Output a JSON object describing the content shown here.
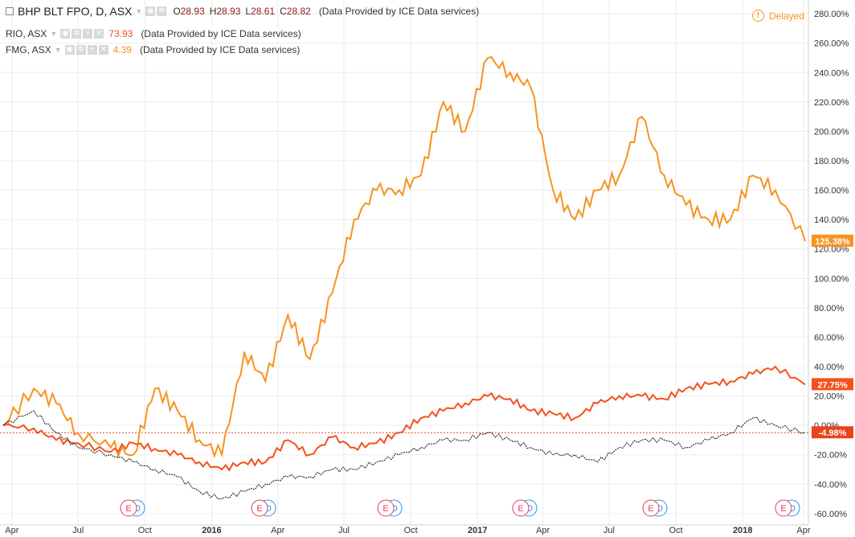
{
  "legend": {
    "main": {
      "symbol": "BHP BLT FPO, D, ASX",
      "open_label": "O",
      "open": "28.93",
      "high_label": "H",
      "high": "28.93",
      "low_label": "L",
      "low": "28.61",
      "close_label": "C",
      "close": "28.82",
      "provider": "(Data Provided by ICE Data services)"
    },
    "compare": [
      {
        "symbol": "RIO, ASX",
        "value": "73.93",
        "provider": "(Data Provided by ICE Data services)"
      },
      {
        "symbol": "FMG, ASX",
        "value": "4.39",
        "provider": "(Data Provided by ICE Data services)"
      }
    ]
  },
  "delayed_label": "Delayed",
  "colors": {
    "fmg": "#f7931e",
    "rio": "#f4511e",
    "bhp": "#111111",
    "baseline": "#e8431b"
  },
  "chart_data": {
    "type": "line",
    "x": [
      "2015-03-20",
      "2015-05-01",
      "2015-06-01",
      "2015-07-01",
      "2015-08-15",
      "2015-09-15",
      "2015-10-15",
      "2015-11-15",
      "2015-12-15",
      "2016-01-15",
      "2016-02-15",
      "2016-03-15",
      "2016-04-15",
      "2016-05-15",
      "2016-06-15",
      "2016-07-15",
      "2016-08-15",
      "2016-09-15",
      "2016-10-15",
      "2016-11-15",
      "2016-12-15",
      "2017-01-15",
      "2017-02-15",
      "2017-03-15",
      "2017-04-15",
      "2017-05-15",
      "2017-06-15",
      "2017-07-15",
      "2017-08-15",
      "2017-09-15",
      "2017-10-15",
      "2017-11-15",
      "2017-12-15",
      "2018-01-15",
      "2018-02-15",
      "2018-03-28"
    ],
    "series": [
      {
        "name": "FMG, ASX",
        "values": [
          0,
          25,
          15,
          -5,
          -15,
          -20,
          25,
          10,
          -10,
          -20,
          50,
          30,
          75,
          45,
          90,
          140,
          160,
          160,
          170,
          220,
          200,
          250,
          240,
          230,
          160,
          140,
          160,
          170,
          210,
          170,
          150,
          140,
          140,
          170,
          160,
          125.38
        ]
      },
      {
        "name": "RIO, ASX",
        "values": [
          0,
          -2,
          -10,
          -12,
          -18,
          -12,
          -16,
          -20,
          -25,
          -30,
          -25,
          -25,
          -10,
          -20,
          -8,
          -15,
          -12,
          -5,
          5,
          10,
          15,
          20,
          18,
          10,
          8,
          5,
          15,
          20,
          20,
          18,
          25,
          28,
          30,
          35,
          40,
          27.75
        ]
      },
      {
        "name": "BHP BLT FPO, D, ASX",
        "values": [
          0,
          10,
          -5,
          -15,
          -20,
          -25,
          -30,
          -35,
          -45,
          -50,
          -45,
          -40,
          -35,
          -35,
          -30,
          -30,
          -25,
          -20,
          -15,
          -10,
          -10,
          -5,
          -10,
          -15,
          -20,
          -20,
          -25,
          -15,
          -10,
          -10,
          -15,
          -10,
          -5,
          5,
          0,
          -4.98
        ]
      }
    ],
    "y_ticks": [
      "280.00%",
      "260.00%",
      "240.00%",
      "220.00%",
      "200.00%",
      "180.00%",
      "160.00%",
      "140.00%",
      "120.00%",
      "100.00%",
      "80.00%",
      "60.00%",
      "40.00%",
      "20.00%",
      "0.00%",
      "-20.00%",
      "-40.00%",
      "-60.00%"
    ],
    "x_ticks": [
      "Apr",
      "Jul",
      "Oct",
      "2016",
      "Apr",
      "Jul",
      "Oct",
      "2017",
      "Apr",
      "Jul",
      "Oct",
      "2018",
      "Apr"
    ],
    "last_labels": {
      "fmg": "125.38%",
      "rio": "27.75%",
      "bhp": "-4.98%"
    },
    "ylim": [
      -65,
      285
    ],
    "grid": true,
    "events": [
      {
        "e": "E",
        "d": "D"
      },
      {
        "e": "E",
        "d": "D"
      },
      {
        "e": "E",
        "d": "D"
      },
      {
        "e": "E",
        "d": "D"
      },
      {
        "e": "E",
        "d": "D"
      },
      {
        "e": "E",
        "d": "D"
      }
    ]
  }
}
